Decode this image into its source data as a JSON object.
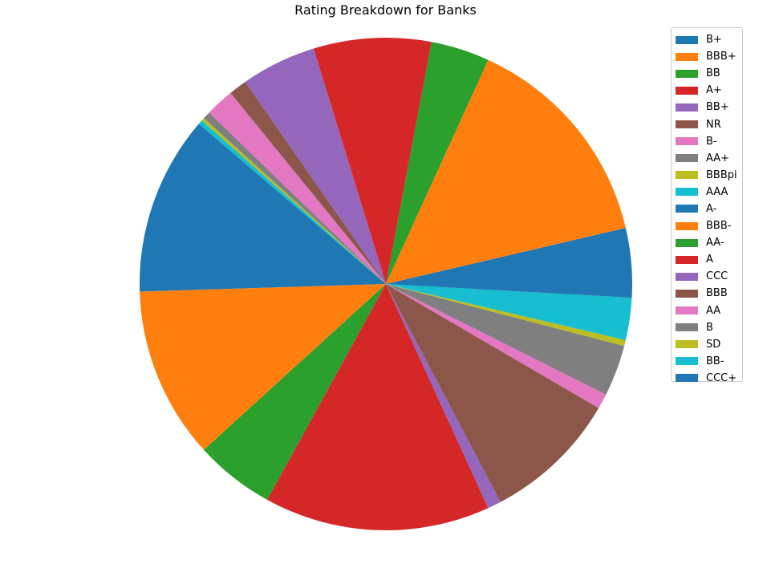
{
  "chart_data": {
    "type": "pie",
    "title": "Rating Breakdown for Banks",
    "legend_position": "top-right",
    "start_angle_deg": 0,
    "direction": "counterclockwise",
    "slices": [
      {
        "label": "B+",
        "value": 3.7,
        "color": "#1f77b4"
      },
      {
        "label": "BBB+",
        "value": 14.7,
        "color": "#ff7f0e"
      },
      {
        "label": "BB",
        "value": 3.9,
        "color": "#2ca02c"
      },
      {
        "label": "A+",
        "value": 7.8,
        "color": "#d62728"
      },
      {
        "label": "BB+",
        "value": 5.0,
        "color": "#9467bd"
      },
      {
        "label": "NR",
        "value": 1.2,
        "color": "#8c564b"
      },
      {
        "label": "B-",
        "value": 1.9,
        "color": "#e377c2"
      },
      {
        "label": "AA+",
        "value": 0.5,
        "color": "#7f7f7f"
      },
      {
        "label": "BBBpi",
        "value": 0.2,
        "color": "#bcbd22"
      },
      {
        "label": "AAA",
        "value": 0.3,
        "color": "#17becf"
      },
      {
        "label": "A-",
        "value": 11.9,
        "color": "#1f77b4"
      },
      {
        "label": "BBB-",
        "value": 11.4,
        "color": "#ff7f0e"
      },
      {
        "label": "AA-",
        "value": 5.3,
        "color": "#2ca02c"
      },
      {
        "label": "A",
        "value": 15.0,
        "color": "#d62728"
      },
      {
        "label": "CCC",
        "value": 0.9,
        "color": "#9467bd"
      },
      {
        "label": "BBB",
        "value": 9.0,
        "color": "#8c564b"
      },
      {
        "label": "AA",
        "value": 1.0,
        "color": "#e377c2"
      },
      {
        "label": "B",
        "value": 3.4,
        "color": "#7f7f7f"
      },
      {
        "label": "SD",
        "value": 0.4,
        "color": "#bcbd22"
      },
      {
        "label": "BB-",
        "value": 2.8,
        "color": "#17becf"
      },
      {
        "label": "CCC+",
        "value": 0.9,
        "color": "#1f77b4"
      }
    ]
  }
}
